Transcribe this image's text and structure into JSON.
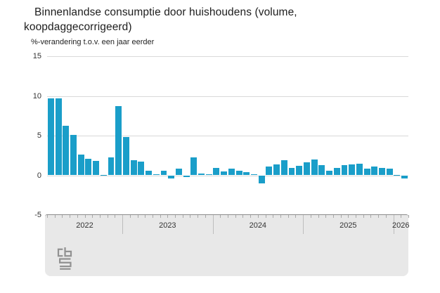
{
  "header": {
    "title": "Binnenlandse consumptie door huishoudens (volume, koopdaggecorrigeerd)",
    "subtitle": "%-verandering t.o.v. een jaar eerder"
  },
  "colors": {
    "bar": "#1a9ec9",
    "grid": "#d9d9d9",
    "axis_band": "#e8e8e8",
    "axis_line": "#8c8c8c",
    "tick": "#a9a9a9",
    "separator": "#bdbdbd",
    "label": "#333333"
  },
  "logo": {
    "name": "cbs-logo"
  },
  "chart_data": {
    "type": "bar",
    "title": "Binnenlandse consumptie door huishoudens (volume, koopdaggecorrigeerd)",
    "ylabel": "%-verandering t.o.v. een jaar eerder",
    "ylim": [
      -5,
      15
    ],
    "yticks": [
      15,
      10,
      5,
      0,
      -5
    ],
    "gridline_values": [
      15,
      10,
      5,
      0
    ],
    "legend": "none",
    "grid": "horizontal",
    "x_year_labels": [
      "2022",
      "2023",
      "2024",
      "2025",
      "2026"
    ],
    "year_start_indices": [
      10,
      22,
      34,
      46
    ],
    "months": [
      "2022-03",
      "2022-04",
      "2022-05",
      "2022-06",
      "2022-07",
      "2022-08",
      "2022-09",
      "2022-10",
      "2022-11",
      "2022-12",
      "2023-01",
      "2023-02",
      "2023-03",
      "2023-04",
      "2023-05",
      "2023-06",
      "2023-07",
      "2023-08",
      "2023-09",
      "2023-10",
      "2023-11",
      "2023-12",
      "2024-01",
      "2024-02",
      "2024-03",
      "2024-04",
      "2024-05",
      "2024-06",
      "2024-07",
      "2024-08",
      "2024-09",
      "2024-10",
      "2024-11",
      "2024-12",
      "2025-01",
      "2025-02",
      "2025-03",
      "2025-04",
      "2025-05",
      "2025-06",
      "2025-07",
      "2025-08",
      "2025-09",
      "2025-10",
      "2025-11",
      "2025-12",
      "2026-01",
      "2026-02"
    ],
    "values": [
      9.7,
      9.7,
      6.2,
      5.1,
      2.6,
      2.1,
      1.8,
      0.0,
      2.3,
      8.7,
      4.8,
      1.9,
      1.7,
      0.6,
      0.1,
      0.6,
      -0.4,
      0.8,
      -0.2,
      2.3,
      0.2,
      0.1,
      0.9,
      0.5,
      0.8,
      0.6,
      0.4,
      0.1,
      -1.0,
      1.1,
      1.4,
      1.9,
      0.9,
      1.2,
      1.6,
      2.0,
      1.3,
      0.6,
      0.9,
      1.3,
      1.4,
      1.5,
      0.8,
      1.1,
      0.9,
      0.8,
      0.0,
      -0.4
    ]
  }
}
